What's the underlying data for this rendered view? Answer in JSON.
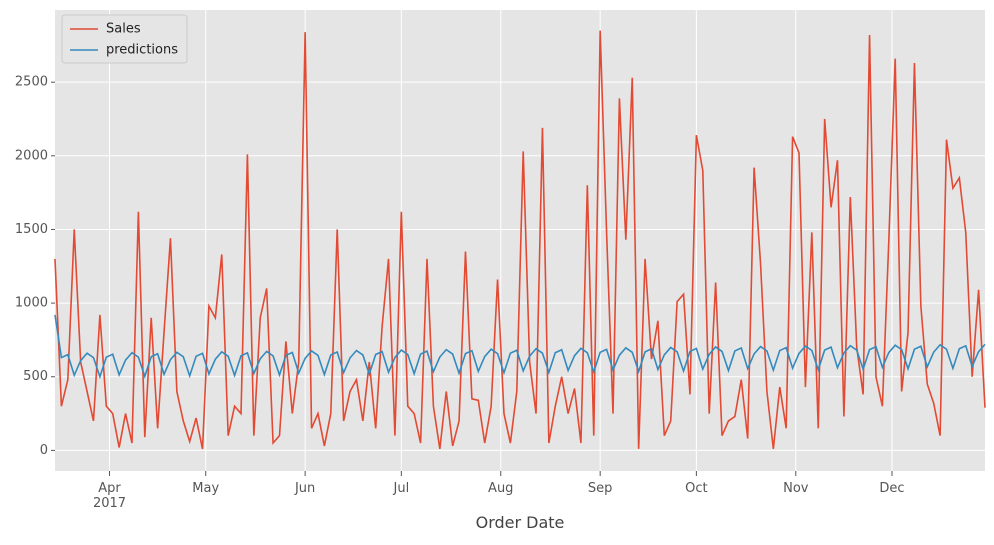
{
  "chart_data": {
    "type": "line",
    "xlabel": "Order Date",
    "legend": "upper left",
    "grid": true,
    "ylim": [
      -140,
      2990
    ],
    "yticks": [
      0,
      500,
      1000,
      1500,
      2000,
      2500
    ],
    "xlim": [
      "2017-03-15",
      "2017-12-30"
    ],
    "xticks": [
      {
        "value": "2017-04-01",
        "label": "Apr\n2017"
      },
      {
        "value": "2017-05-01",
        "label": "May"
      },
      {
        "value": "2017-06-01",
        "label": "Jun"
      },
      {
        "value": "2017-07-01",
        "label": "Jul"
      },
      {
        "value": "2017-08-01",
        "label": "Aug"
      },
      {
        "value": "2017-09-01",
        "label": "Sep"
      },
      {
        "value": "2017-10-01",
        "label": "Oct"
      },
      {
        "value": "2017-11-01",
        "label": "Nov"
      },
      {
        "value": "2017-12-01",
        "label": "Dec"
      }
    ],
    "x": [
      "2017-03-15",
      "2017-03-17",
      "2017-03-19",
      "2017-03-21",
      "2017-03-23",
      "2017-03-25",
      "2017-03-27",
      "2017-03-29",
      "2017-03-31",
      "2017-04-02",
      "2017-04-04",
      "2017-04-06",
      "2017-04-08",
      "2017-04-10",
      "2017-04-12",
      "2017-04-14",
      "2017-04-16",
      "2017-04-18",
      "2017-04-20",
      "2017-04-22",
      "2017-04-24",
      "2017-04-26",
      "2017-04-28",
      "2017-04-30",
      "2017-05-02",
      "2017-05-04",
      "2017-05-06",
      "2017-05-08",
      "2017-05-10",
      "2017-05-12",
      "2017-05-14",
      "2017-05-16",
      "2017-05-18",
      "2017-05-20",
      "2017-05-22",
      "2017-05-24",
      "2017-05-26",
      "2017-05-28",
      "2017-05-30",
      "2017-06-01",
      "2017-06-03",
      "2017-06-05",
      "2017-06-07",
      "2017-06-09",
      "2017-06-11",
      "2017-06-13",
      "2017-06-15",
      "2017-06-17",
      "2017-06-19",
      "2017-06-21",
      "2017-06-23",
      "2017-06-25",
      "2017-06-27",
      "2017-06-29",
      "2017-07-01",
      "2017-07-03",
      "2017-07-05",
      "2017-07-07",
      "2017-07-09",
      "2017-07-11",
      "2017-07-13",
      "2017-07-15",
      "2017-07-17",
      "2017-07-19",
      "2017-07-21",
      "2017-07-23",
      "2017-07-25",
      "2017-07-27",
      "2017-07-29",
      "2017-07-31",
      "2017-08-02",
      "2017-08-04",
      "2017-08-06",
      "2017-08-08",
      "2017-08-10",
      "2017-08-12",
      "2017-08-14",
      "2017-08-16",
      "2017-08-18",
      "2017-08-20",
      "2017-08-22",
      "2017-08-24",
      "2017-08-26",
      "2017-08-28",
      "2017-08-30",
      "2017-09-01",
      "2017-09-03",
      "2017-09-05",
      "2017-09-07",
      "2017-09-09",
      "2017-09-11",
      "2017-09-13",
      "2017-09-15",
      "2017-09-17",
      "2017-09-19",
      "2017-09-21",
      "2017-09-23",
      "2017-09-25",
      "2017-09-27",
      "2017-09-29",
      "2017-10-01",
      "2017-10-03",
      "2017-10-05",
      "2017-10-07",
      "2017-10-09",
      "2017-10-11",
      "2017-10-13",
      "2017-10-15",
      "2017-10-17",
      "2017-10-19",
      "2017-10-21",
      "2017-10-23",
      "2017-10-25",
      "2017-10-27",
      "2017-10-29",
      "2017-10-31",
      "2017-11-02",
      "2017-11-04",
      "2017-11-06",
      "2017-11-08",
      "2017-11-10",
      "2017-11-12",
      "2017-11-14",
      "2017-11-16",
      "2017-11-18",
      "2017-11-20",
      "2017-11-22",
      "2017-11-24",
      "2017-11-26",
      "2017-11-28",
      "2017-11-30",
      "2017-12-02",
      "2017-12-04",
      "2017-12-06",
      "2017-12-08",
      "2017-12-10",
      "2017-12-12",
      "2017-12-14",
      "2017-12-16",
      "2017-12-18",
      "2017-12-20",
      "2017-12-22",
      "2017-12-24",
      "2017-12-26",
      "2017-12-28",
      "2017-12-30"
    ],
    "series": [
      {
        "name": "Sales",
        "color": "#E24A33",
        "values": [
          1300,
          300,
          480,
          1500,
          600,
          400,
          200,
          920,
          300,
          250,
          20,
          250,
          50,
          1620,
          90,
          900,
          150,
          800,
          1440,
          400,
          200,
          60,
          220,
          10,
          980,
          900,
          1330,
          100,
          300,
          250,
          2010,
          100,
          900,
          1100,
          50,
          100,
          740,
          250,
          600,
          2840,
          150,
          250,
          30,
          250,
          1500,
          200,
          400,
          480,
          200,
          600,
          150,
          840,
          1300,
          100,
          1620,
          300,
          250,
          50,
          1300,
          300,
          10,
          400,
          30,
          200,
          1350,
          350,
          340,
          50,
          300,
          1160,
          250,
          50,
          400,
          2030,
          600,
          250,
          2190,
          50,
          300,
          500,
          250,
          420,
          50,
          1800,
          100,
          2850,
          1480,
          250,
          2390,
          1430,
          2530,
          10,
          1300,
          620,
          880,
          100,
          200,
          1010,
          1060,
          380,
          2140,
          1900,
          250,
          1140,
          100,
          200,
          230,
          480,
          80,
          1920,
          1270,
          400,
          10,
          430,
          150,
          2130,
          2020,
          430,
          1480,
          150,
          2250,
          1650,
          1970,
          230,
          1720,
          700,
          380,
          2820,
          500,
          300,
          1420,
          2660,
          400,
          800,
          2630,
          980,
          450,
          320,
          100,
          2110,
          1780,
          1850,
          1480,
          500,
          1090,
          290
        ]
      },
      {
        "name": "predictions",
        "color": "#348ABD",
        "values": [
          920,
          630,
          650,
          510,
          610,
          660,
          630,
          500,
          633,
          653,
          513,
          613,
          663,
          633,
          503,
          636,
          656,
          516,
          616,
          666,
          636,
          506,
          639,
          659,
          519,
          619,
          669,
          639,
          509,
          642,
          662,
          522,
          622,
          672,
          642,
          512,
          645,
          665,
          525,
          625,
          675,
          645,
          515,
          648,
          668,
          528,
          628,
          678,
          648,
          518,
          651,
          671,
          531,
          631,
          681,
          651,
          521,
          654,
          674,
          534,
          634,
          684,
          654,
          524,
          657,
          677,
          537,
          637,
          687,
          657,
          527,
          660,
          680,
          540,
          640,
          690,
          660,
          530,
          663,
          683,
          543,
          643,
          693,
          663,
          533,
          666,
          686,
          546,
          646,
          696,
          666,
          536,
          669,
          689,
          549,
          649,
          699,
          669,
          539,
          672,
          692,
          552,
          652,
          702,
          672,
          542,
          675,
          695,
          555,
          655,
          705,
          675,
          545,
          678,
          698,
          558,
          658,
          708,
          678,
          548,
          681,
          701,
          561,
          661,
          711,
          681,
          551,
          684,
          704,
          564,
          664,
          714,
          684,
          554,
          687,
          707,
          567,
          667,
          717,
          687,
          557,
          690,
          710,
          570,
          670,
          720
        ]
      }
    ]
  }
}
